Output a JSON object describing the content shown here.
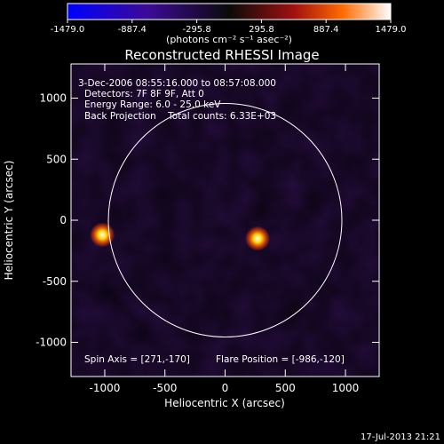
{
  "chart_data": {
    "type": "heatmap",
    "title": "Reconstructed RHESSI Image",
    "xlabel": "Heliocentric X (arcsec)",
    "ylabel": "Heliocentric Y (arcsec)",
    "xlim": [
      -1280,
      1280
    ],
    "ylim": [
      -1280,
      1280
    ],
    "xticks": [
      -1000,
      -500,
      0,
      500,
      1000
    ],
    "yticks": [
      -1000,
      -500,
      0,
      500,
      1000
    ],
    "colorbar": {
      "ticks": [
        "-1479.0",
        "-887.4",
        "-295.8",
        "295.8",
        "887.4",
        "1479.0"
      ],
      "range": [
        -1479.0,
        1479.0
      ],
      "unit": "(photons cm⁻² s⁻¹ asec⁻²)"
    },
    "annotations": [
      "3-Dec-2006 08:55:16.000 to 08:57:08.000",
      "Detectors: 7F 8F 9F, Att 0",
      "Energy Range: 6.0 - 25.0 keV",
      "Back Projection    Total counts: 6.33E+03"
    ],
    "footer_left": "Spin Axis = [271,-170]",
    "footer_right": "Flare Position = [-986,-120]",
    "solar_disk": {
      "center": [
        0,
        0
      ],
      "radius": 970
    },
    "bright_sources": [
      {
        "x": -1020,
        "y": -120,
        "value": 1479.0
      },
      {
        "x": 270,
        "y": -150,
        "value": 1400.0
      }
    ]
  },
  "timestamp": "17-Jul-2013 21:21"
}
